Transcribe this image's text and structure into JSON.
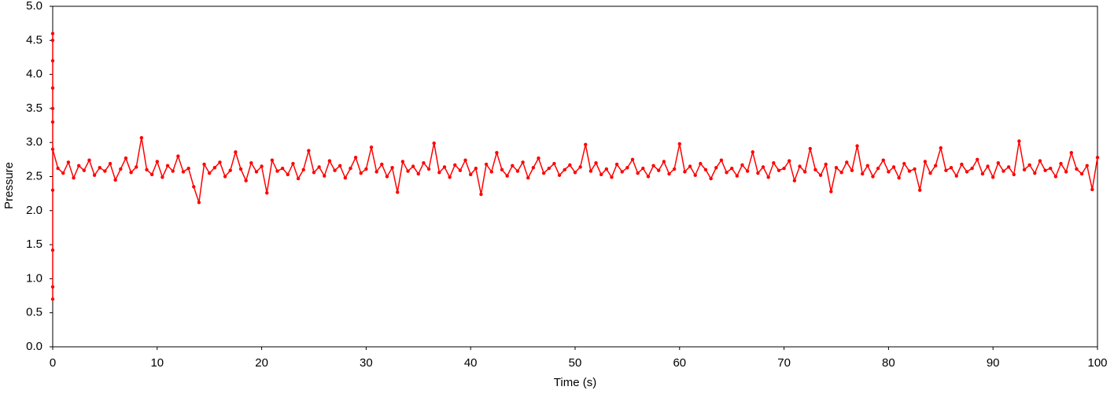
{
  "chart_data": {
    "type": "scatter",
    "x_label": "Time (s)",
    "y_label": "Pressure",
    "xlim": [
      0,
      100
    ],
    "xticks": [
      0,
      10,
      20,
      30,
      40,
      50,
      60,
      70,
      80,
      90,
      100
    ],
    "ylim": [
      0,
      5
    ],
    "yticks": [
      {
        "value": 0,
        "label": "0.0"
      },
      0.5,
      {
        "value": 1,
        "label": "1.0"
      },
      1.5,
      {
        "value": 2,
        "label": "2.0"
      },
      2.5,
      {
        "value": 3,
        "label": "3.0"
      },
      3.5,
      {
        "value": 4,
        "label": "4.0"
      },
      4.5,
      {
        "value": 5,
        "label": "5.0"
      }
    ],
    "grid": false,
    "series": [
      {
        "color": "#ff0000",
        "x": [
          0,
          0,
          0,
          0,
          0,
          0,
          0,
          0,
          0,
          0,
          0,
          0.5,
          1,
          1.5,
          2,
          2.5,
          3,
          3.5,
          4,
          4.5,
          5,
          5.5,
          6,
          6.5,
          7,
          7.5,
          8,
          8.5,
          9,
          9.5,
          10,
          10.5,
          11,
          11.5,
          12,
          12.5,
          13,
          13.5,
          14,
          14.5,
          15,
          15.5,
          16,
          16.5,
          17,
          17.5,
          18,
          18.5,
          19,
          19.5,
          20,
          20.5,
          21,
          21.5,
          22,
          22.5,
          23,
          23.5,
          24,
          24.5,
          25,
          25.5,
          26,
          26.5,
          27,
          27.5,
          28,
          28.5,
          29,
          29.5,
          30,
          30.5,
          31,
          31.5,
          32,
          32.5,
          33,
          33.5,
          34,
          34.5,
          35,
          35.5,
          36,
          36.5,
          37,
          37.5,
          38,
          38.5,
          39,
          39.5,
          40,
          40.5,
          41,
          41.5,
          42,
          42.5,
          43,
          43.5,
          44,
          44.5,
          45,
          45.5,
          46,
          46.5,
          47,
          47.5,
          48,
          48.5,
          49,
          49.5,
          50,
          50.5,
          51,
          51.5,
          52,
          52.5,
          53,
          53.5,
          54,
          54.5,
          55,
          55.5,
          56,
          56.5,
          57,
          57.5,
          58,
          58.5,
          59,
          59.5,
          60,
          60.5,
          61,
          61.5,
          62,
          62.5,
          63,
          63.5,
          64,
          64.5,
          65,
          65.5,
          66,
          66.5,
          67,
          67.5,
          68,
          68.5,
          69,
          69.5,
          70,
          70.5,
          71,
          71.5,
          72,
          72.5,
          73,
          73.5,
          74,
          74.5,
          75,
          75.5,
          76,
          76.5,
          77,
          77.5,
          78,
          78.5,
          79,
          79.5,
          80,
          80.5,
          81,
          81.5,
          82,
          82.5,
          83,
          83.5,
          84,
          84.5,
          85,
          85.5,
          86,
          86.5,
          87,
          87.5,
          88,
          88.5,
          89,
          89.5,
          90,
          90.5,
          91,
          91.5,
          92,
          92.5,
          93,
          93.5,
          94,
          94.5,
          95,
          95.5,
          96,
          96.5,
          97,
          97.5,
          98,
          98.5,
          99,
          99.5,
          100
        ],
        "values": [
          0.7,
          0.88,
          1.42,
          2.3,
          3.3,
          3.8,
          4.2,
          4.6,
          4.5,
          3.5,
          2.9,
          2.62,
          2.55,
          2.71,
          2.48,
          2.66,
          2.59,
          2.74,
          2.52,
          2.63,
          2.58,
          2.69,
          2.45,
          2.61,
          2.77,
          2.56,
          2.64,
          3.07,
          2.6,
          2.53,
          2.72,
          2.49,
          2.66,
          2.58,
          2.8,
          2.57,
          2.62,
          2.35,
          2.12,
          2.68,
          2.55,
          2.63,
          2.71,
          2.5,
          2.59,
          2.86,
          2.61,
          2.44,
          2.7,
          2.57,
          2.65,
          2.26,
          2.74,
          2.58,
          2.62,
          2.53,
          2.69,
          2.47,
          2.6,
          2.88,
          2.56,
          2.64,
          2.51,
          2.73,
          2.59,
          2.66,
          2.48,
          2.62,
          2.78,
          2.55,
          2.61,
          2.93,
          2.57,
          2.68,
          2.5,
          2.63,
          2.27,
          2.72,
          2.58,
          2.65,
          2.54,
          2.7,
          2.61,
          2.99,
          2.56,
          2.64,
          2.49,
          2.67,
          2.59,
          2.74,
          2.53,
          2.62,
          2.24,
          2.68,
          2.57,
          2.85,
          2.6,
          2.51,
          2.66,
          2.58,
          2.71,
          2.48,
          2.63,
          2.77,
          2.55,
          2.62,
          2.69,
          2.52,
          2.6,
          2.67,
          2.56,
          2.64,
          2.97,
          2.58,
          2.7,
          2.53,
          2.61,
          2.49,
          2.68,
          2.57,
          2.63,
          2.75,
          2.55,
          2.62,
          2.5,
          2.66,
          2.59,
          2.72,
          2.54,
          2.61,
          2.98,
          2.57,
          2.65,
          2.52,
          2.69,
          2.6,
          2.47,
          2.63,
          2.74,
          2.56,
          2.62,
          2.51,
          2.67,
          2.58,
          2.86,
          2.55,
          2.64,
          2.49,
          2.7,
          2.59,
          2.62,
          2.73,
          2.44,
          2.65,
          2.57,
          2.91,
          2.6,
          2.52,
          2.68,
          2.28,
          2.63,
          2.56,
          2.71,
          2.59,
          2.95,
          2.54,
          2.66,
          2.5,
          2.62,
          2.74,
          2.57,
          2.64,
          2.48,
          2.69,
          2.58,
          2.61,
          2.3,
          2.72,
          2.55,
          2.66,
          2.92,
          2.59,
          2.63,
          2.51,
          2.68,
          2.57,
          2.62,
          2.75,
          2.54,
          2.65,
          2.49,
          2.7,
          2.58,
          2.64,
          2.53,
          3.02,
          2.6,
          2.67,
          2.55,
          2.73,
          2.59,
          2.62,
          2.5,
          2.69,
          2.57,
          2.85,
          2.61,
          2.54,
          2.66,
          2.31,
          2.78
        ]
      }
    ]
  }
}
